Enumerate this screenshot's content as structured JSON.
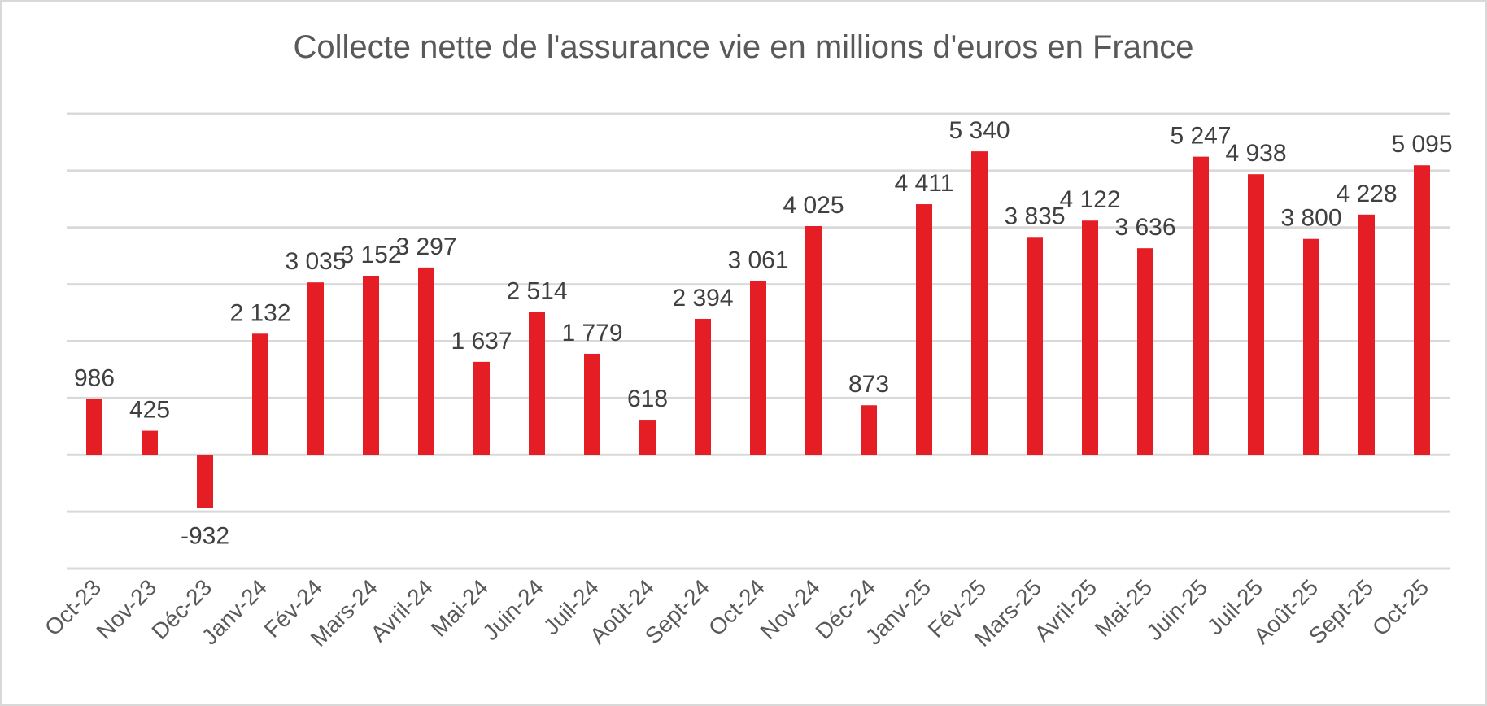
{
  "chart_data": {
    "type": "bar",
    "title": "Collecte nette de l'assurance vie en millions d'euros en France",
    "xlabel": "",
    "ylabel": "",
    "ylim": [
      -2000,
      6000
    ],
    "grid": true,
    "bar_color": "#e51e25",
    "categories": [
      "Oct-23",
      "Nov-23",
      "Déc-23",
      "Janv-24",
      "Fév-24",
      "Mars-24",
      "Avril-24",
      "Mai-24",
      "Juin-24",
      "Juil-24",
      "Août-24",
      "Sept-24",
      "Oct-24",
      "Nov-24",
      "Déc-24",
      "Janv-25",
      "Fév-25",
      "Mars-25",
      "Avril-25",
      "Mai-25",
      "Juin-25",
      "Juil-25",
      "Août-25",
      "Sept-25",
      "Oct-25"
    ],
    "values": [
      986,
      425,
      -932,
      2132,
      3035,
      3152,
      3297,
      1637,
      2514,
      1779,
      618,
      2394,
      3061,
      4025,
      873,
      4411,
      5340,
      3835,
      4122,
      3636,
      5247,
      4938,
      3800,
      4228,
      5095
    ],
    "labels": [
      "986",
      "425",
      "-932",
      "2 132",
      "3 035",
      "3 152",
      "3 297",
      "1 637",
      "2 514",
      "1 779",
      "618",
      "2 394",
      "3 061",
      "4 025",
      "873",
      "4 411",
      "5 340",
      "3 835",
      "4 122",
      "3 636",
      "5 247",
      "4 938",
      "3 800",
      "4 228",
      "5 095"
    ]
  }
}
